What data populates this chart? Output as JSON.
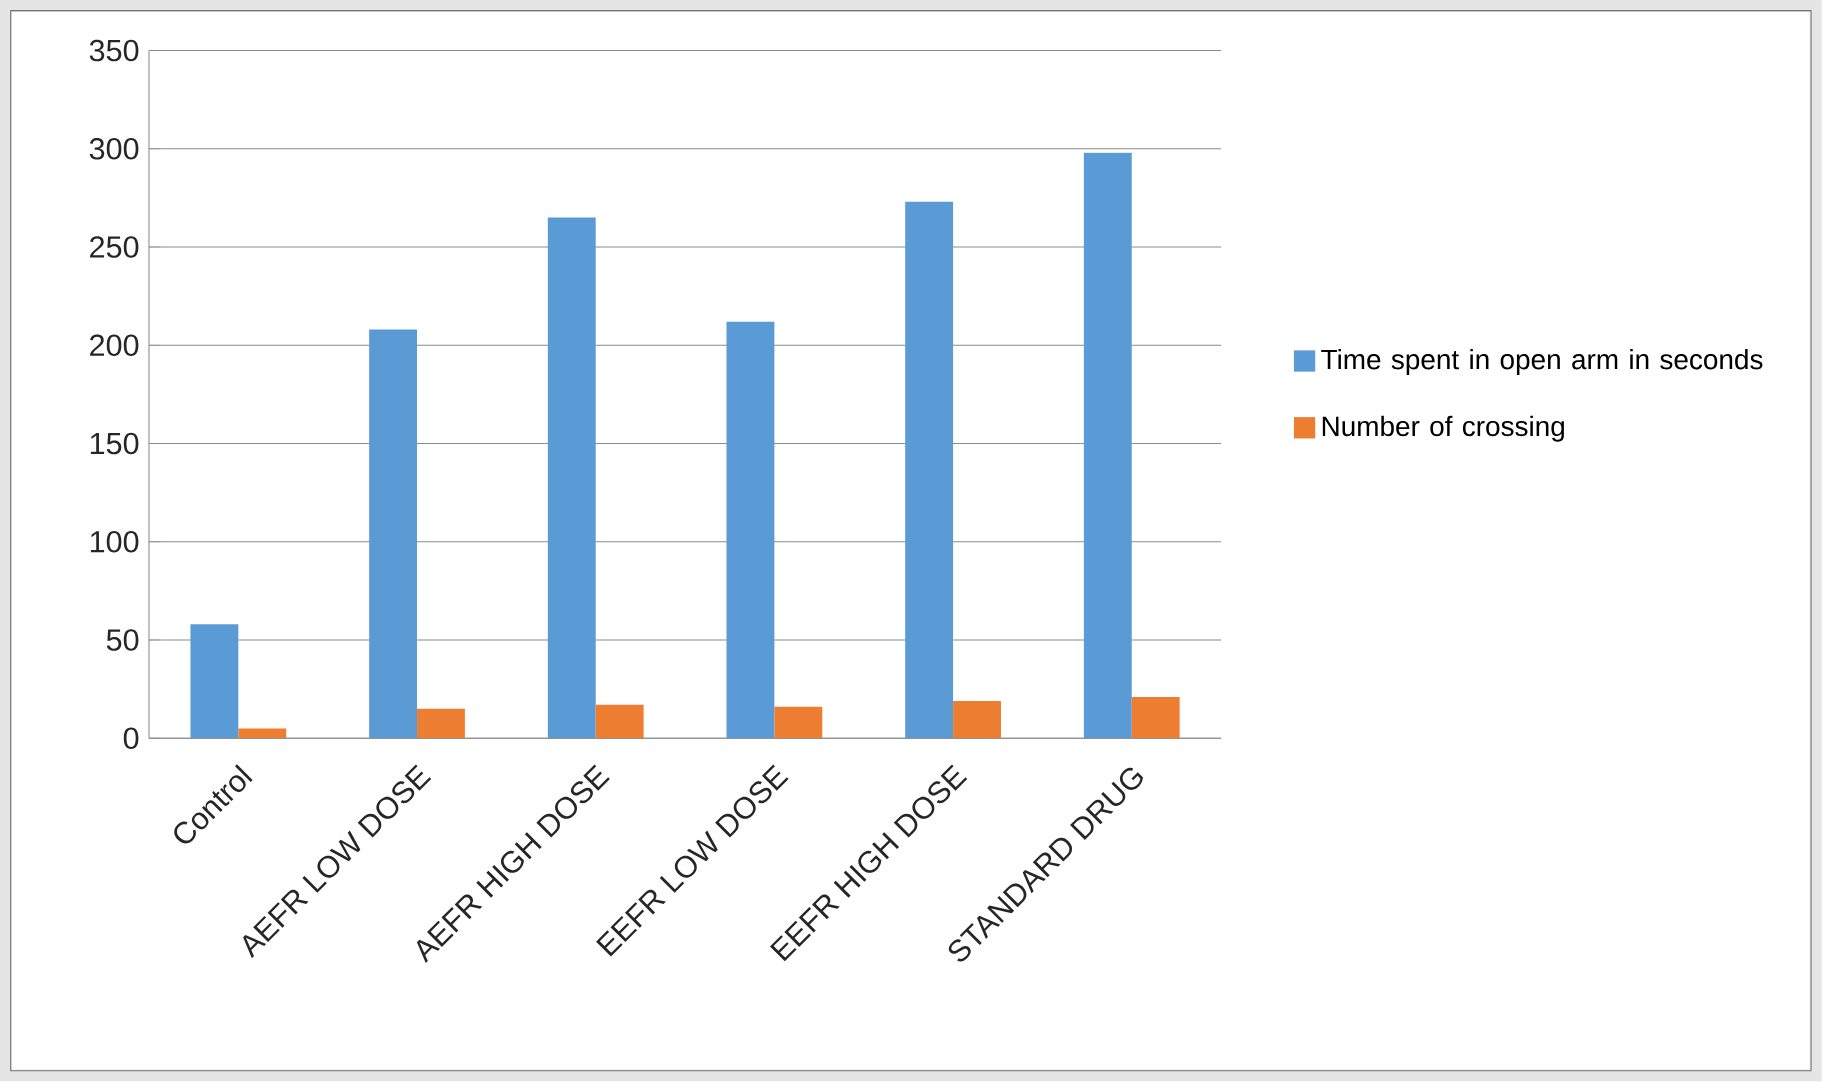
{
  "chart_data": {
    "type": "bar",
    "categories": [
      "Control",
      "AEFR LOW DOSE",
      "AEFR HIGH DOSE",
      "EEFR LOW DOSE",
      "EEFR HIGH DOSE",
      "STANDARD DRUG"
    ],
    "series": [
      {
        "name": "Time spent in open arm in seconds",
        "color": "#5b9bd5",
        "values": [
          58,
          208,
          265,
          212,
          273,
          298
        ]
      },
      {
        "name": "Number of crossing",
        "color": "#ed7d31",
        "values": [
          5,
          15,
          17,
          16,
          19,
          21
        ]
      }
    ],
    "ylim": [
      0,
      350
    ],
    "yticks": [
      0,
      50,
      100,
      150,
      200,
      250,
      300,
      350
    ],
    "grid": "y",
    "legend": "right"
  }
}
